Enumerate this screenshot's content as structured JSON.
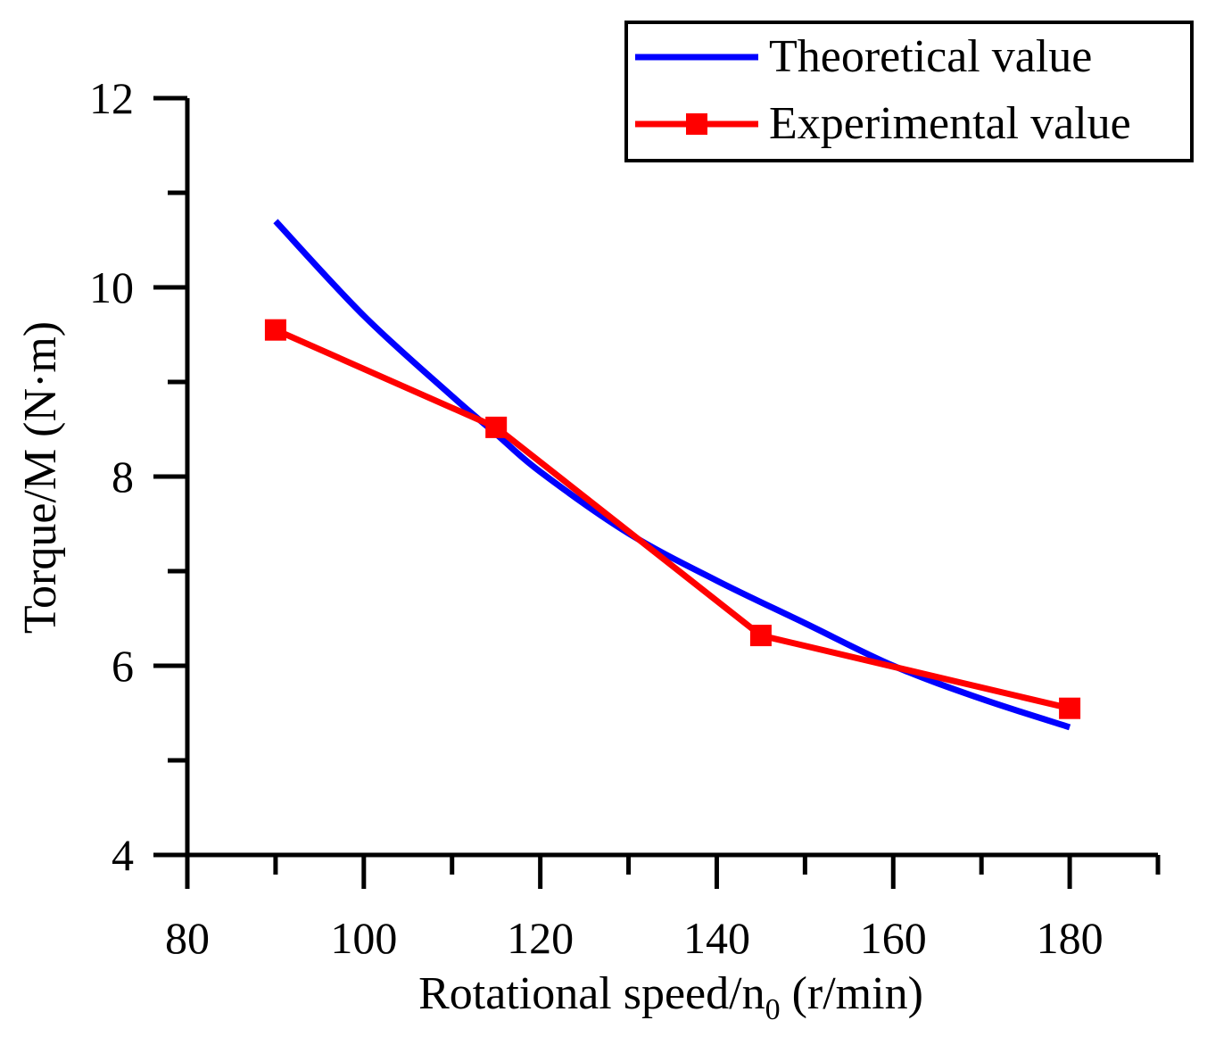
{
  "chart_data": {
    "type": "line",
    "xlabel": "Rotational speed/n",
    "xlabel_sub": "0",
    "xlabel_unit": " (r/min)",
    "ylabel": "Torque/M (N·m)",
    "xlim": [
      80,
      190
    ],
    "ylim": [
      4,
      12
    ],
    "x_ticks": [
      80,
      100,
      120,
      140,
      160,
      180
    ],
    "y_ticks": [
      4,
      6,
      8,
      10,
      12
    ],
    "grid": false,
    "legend_position": "top-right",
    "series": [
      {
        "name": "Theoretical value",
        "color": "#0000ff",
        "marker": "none",
        "x": [
          90,
          100,
          110,
          115,
          120,
          130,
          140,
          150,
          160,
          170,
          180
        ],
        "y": [
          10.7,
          9.7,
          8.85,
          8.45,
          8.05,
          7.4,
          6.9,
          6.45,
          6.0,
          5.65,
          5.35
        ]
      },
      {
        "name": "Experimental value",
        "color": "#ff0000",
        "marker": "square",
        "x": [
          90,
          115,
          145,
          180
        ],
        "y": [
          9.55,
          8.52,
          6.32,
          5.55
        ]
      }
    ]
  }
}
